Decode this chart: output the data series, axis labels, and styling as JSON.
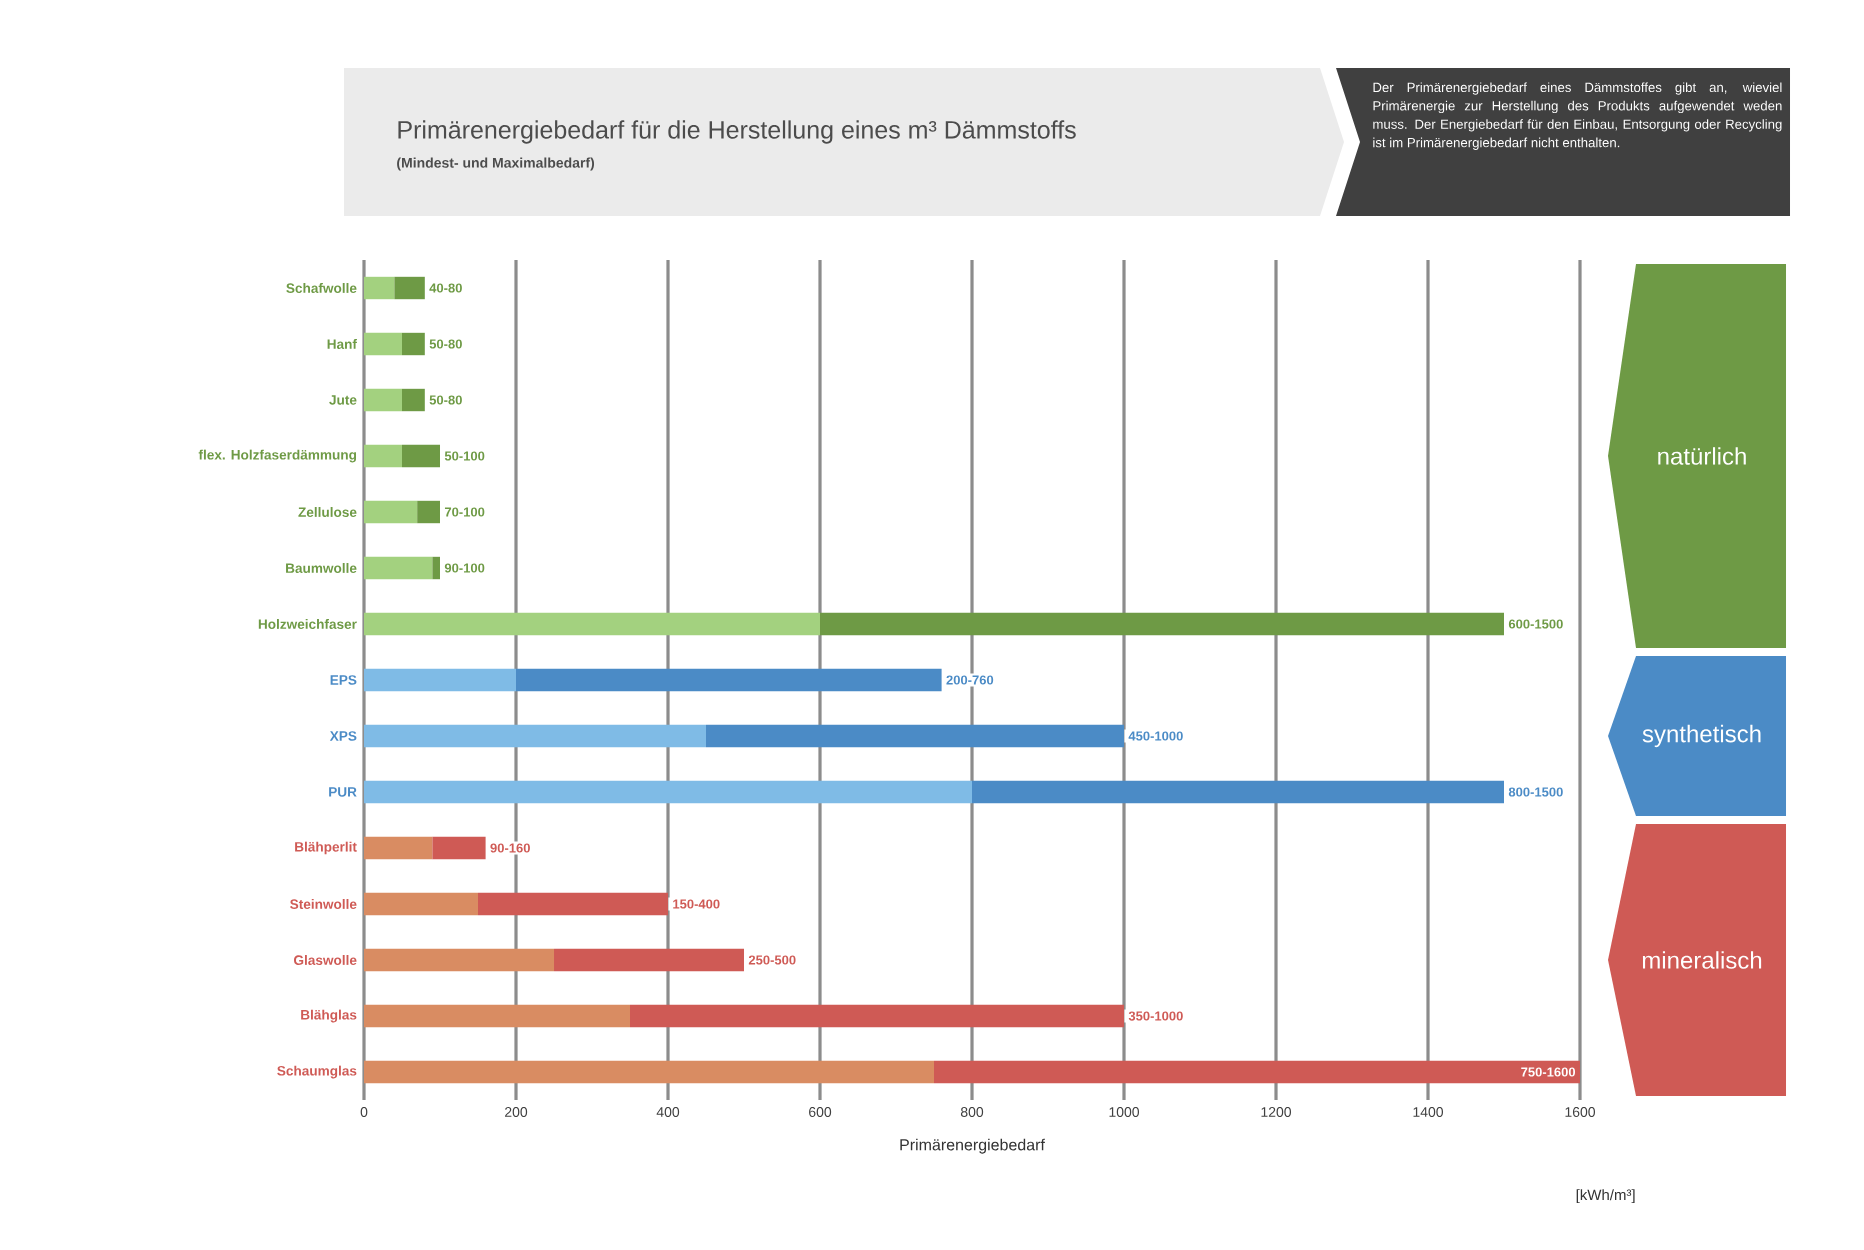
{
  "chart_data": {
    "type": "bar",
    "orientation": "horizontal",
    "stacked": true,
    "title": "Primärenergiebedarf für die Herstellung eines m³ Dämmstoffs",
    "subtitle": "(Mindest- und Maximalbedarf)",
    "xlabel": "Primärenergiebedarf",
    "annotations": [
      "Der Primärenergiebedarf eines Dämmstoffes gibt an, wieviel Primärenergie zur Herstellung des Produkts aufgewendet weden muss. Der Energiebedarf für den Einbau, Entsorgung oder Recycling ist im Primärenergiebedarf nicht enthalten.",
      "[kWh/m³]",
      "natürlich",
      "synthetisch",
      "mineralisch"
    ],
    "categories": [
      "Schafwolle",
      "Hanf",
      "Jute",
      "flex. Holzfaserdämmung",
      "Zellulose",
      "Baumwolle",
      "Holzweichfaser",
      "EPS",
      "XPS",
      "PUR",
      "Blähperlit",
      "Steinwolle",
      "Glaswolle",
      "Blähglas",
      "Schaumglas"
    ],
    "series": [
      {
        "colors": [
          "#a3d17f",
          "#a3d17f",
          "#a3d17f",
          "#a3d17f",
          "#a3d17f",
          "#a3d17f",
          "#a3d17f",
          "#7fbbe6",
          "#7fbbe6",
          "#7fbbe6",
          "#d98c62",
          "#d98c62",
          "#d98c62",
          "#d98c62",
          "#d98c62"
        ],
        "values": [
          40,
          50,
          50,
          50,
          70,
          90,
          600,
          200,
          450,
          800,
          90,
          150,
          250,
          350,
          750
        ]
      },
      {
        "colors": [
          "#6e9a45",
          "#6e9a45",
          "#6e9a45",
          "#6e9a45",
          "#6e9a45",
          "#6e9a45",
          "#6e9a45",
          "#4b8bc6",
          "#4b8bc6",
          "#4b8bc6",
          "#cf5a55",
          "#cf5a55",
          "#cf5a55",
          "#cf5a55",
          "#cf5a55"
        ],
        "values": [
          40,
          30,
          30,
          50,
          30,
          10,
          900,
          560,
          550,
          700,
          70,
          250,
          250,
          650,
          850
        ],
        "value_labels": [
          "40-80",
          "50-80",
          "50-80",
          "50-100",
          "70-100",
          "90-100",
          "600-1500",
          "200-760",
          "450-1000",
          "800-1500",
          "90-160",
          "150-400",
          "250-500",
          "350-1000",
          "750-1600"
        ]
      }
    ],
    "xlim": [
      0,
      1600
    ],
    "xticks": [
      0,
      200,
      400,
      600,
      800,
      1000,
      1200,
      1400,
      1600
    ],
    "grid": "x"
  }
}
